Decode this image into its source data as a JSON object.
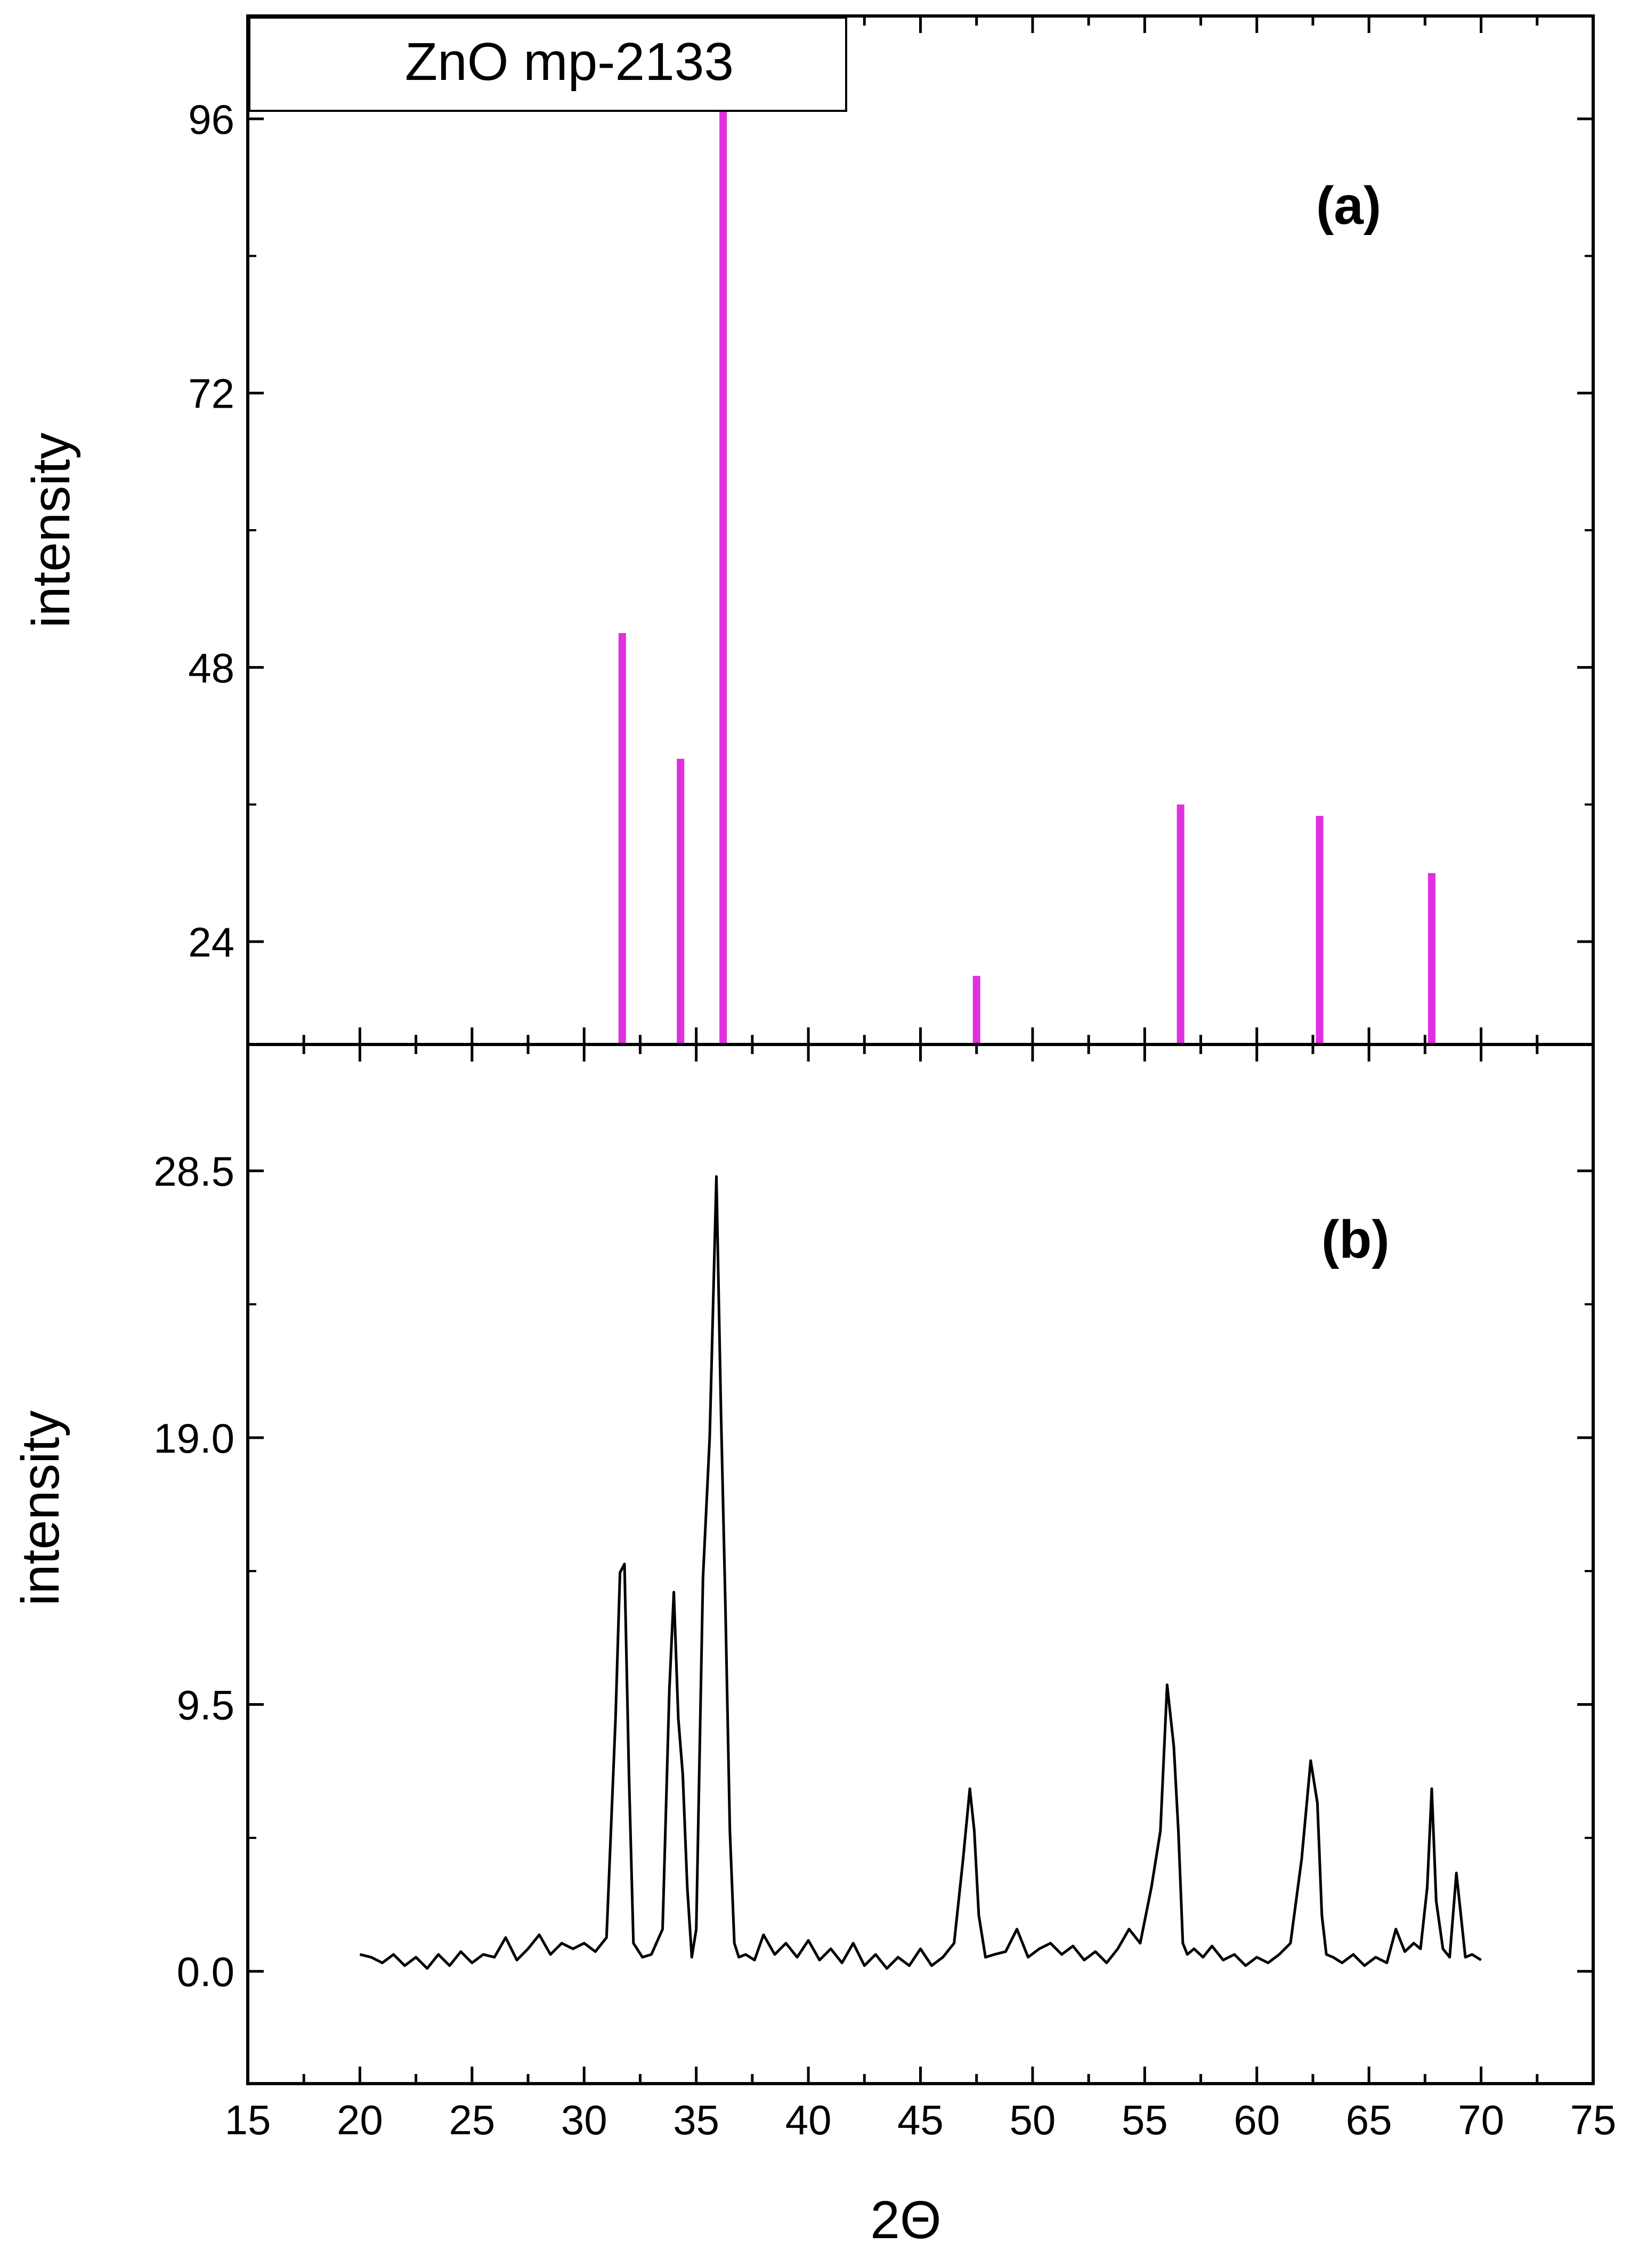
{
  "chart_data": [
    {
      "type": "bar",
      "panel_label": "(a)",
      "legend": "ZnO mp-2133",
      "xlabel": "",
      "ylabel": "intensity",
      "xlim": [
        15,
        75
      ],
      "ylim": [
        15,
        105
      ],
      "yticks": [
        24,
        48,
        72,
        96
      ],
      "color": "#e030e0",
      "x": [
        31.7,
        34.3,
        36.2,
        47.5,
        56.6,
        62.8,
        67.8
      ],
      "values": [
        51,
        40,
        100,
        21,
        36,
        35,
        30
      ]
    },
    {
      "type": "line",
      "panel_label": "(b)",
      "xlabel": "2Θ",
      "ylabel": "intensity",
      "xlim": [
        15,
        75
      ],
      "ylim": [
        -4,
        33
      ],
      "xticks": [
        15,
        20,
        25,
        30,
        35,
        40,
        45,
        50,
        55,
        60,
        65,
        70,
        75
      ],
      "yticks": [
        0.0,
        9.5,
        19.0,
        28.5
      ],
      "ytick_labels": [
        "0.0",
        "9.5",
        "19.0",
        "28.5"
      ],
      "color": "#000000",
      "x": [
        20.0,
        20.5,
        21.0,
        21.5,
        22.0,
        22.5,
        23.0,
        23.5,
        24.0,
        24.5,
        25.0,
        25.5,
        26.0,
        26.5,
        27.0,
        27.5,
        28.0,
        28.5,
        29.0,
        29.5,
        30.0,
        30.5,
        31.0,
        31.4,
        31.6,
        31.8,
        32.0,
        32.2,
        32.6,
        33.0,
        33.5,
        33.8,
        34.0,
        34.2,
        34.4,
        34.6,
        34.8,
        35.0,
        35.3,
        35.6,
        35.9,
        36.1,
        36.3,
        36.5,
        36.7,
        36.9,
        37.2,
        37.6,
        38.0,
        38.5,
        39.0,
        39.5,
        40.0,
        40.5,
        41.0,
        41.5,
        42.0,
        42.5,
        43.0,
        43.5,
        44.0,
        44.5,
        45.0,
        45.5,
        46.0,
        46.5,
        46.9,
        47.2,
        47.4,
        47.6,
        47.9,
        48.3,
        48.8,
        49.3,
        49.8,
        50.3,
        50.8,
        51.3,
        51.8,
        52.3,
        52.8,
        53.3,
        53.8,
        54.3,
        54.8,
        55.3,
        55.7,
        56.0,
        56.3,
        56.5,
        56.7,
        56.9,
        57.2,
        57.6,
        58.0,
        58.5,
        59.0,
        59.5,
        60.0,
        60.5,
        61.0,
        61.5,
        62.0,
        62.4,
        62.7,
        62.9,
        63.1,
        63.4,
        63.8,
        64.3,
        64.8,
        65.3,
        65.8,
        66.2,
        66.6,
        67.0,
        67.3,
        67.6,
        67.8,
        68.0,
        68.3,
        68.6,
        68.9,
        69.1,
        69.3,
        69.6,
        70.0
      ],
      "values": [
        0.6,
        0.5,
        0.3,
        0.6,
        0.2,
        0.5,
        0.1,
        0.6,
        0.2,
        0.7,
        0.3,
        0.6,
        0.5,
        1.2,
        0.4,
        0.8,
        1.3,
        0.6,
        1.0,
        0.8,
        1.0,
        0.7,
        1.2,
        9.0,
        14.2,
        14.5,
        7.0,
        1.0,
        0.5,
        0.6,
        1.5,
        10.0,
        13.5,
        9.0,
        7.0,
        3.0,
        0.5,
        1.5,
        14.0,
        19.0,
        28.3,
        20.0,
        13.0,
        5.0,
        1.0,
        0.5,
        0.6,
        0.4,
        1.3,
        0.6,
        1.0,
        0.5,
        1.1,
        0.4,
        0.8,
        0.3,
        1.0,
        0.2,
        0.6,
        0.1,
        0.5,
        0.2,
        0.8,
        0.2,
        0.5,
        1.0,
        4.0,
        6.5,
        5.0,
        2.0,
        0.5,
        0.6,
        0.7,
        1.5,
        0.5,
        0.8,
        1.0,
        0.6,
        0.9,
        0.4,
        0.7,
        0.3,
        0.8,
        1.5,
        1.0,
        3.0,
        5.0,
        10.2,
        8.0,
        5.0,
        1.0,
        0.6,
        0.8,
        0.5,
        0.9,
        0.4,
        0.6,
        0.2,
        0.5,
        0.3,
        0.6,
        1.0,
        4.0,
        7.5,
        6.0,
        2.0,
        0.6,
        0.5,
        0.3,
        0.6,
        0.2,
        0.5,
        0.3,
        1.5,
        0.7,
        1.0,
        0.8,
        3.0,
        6.5,
        2.5,
        0.8,
        0.5,
        3.5,
        2.0,
        0.5,
        0.6,
        0.4
      ]
    }
  ]
}
